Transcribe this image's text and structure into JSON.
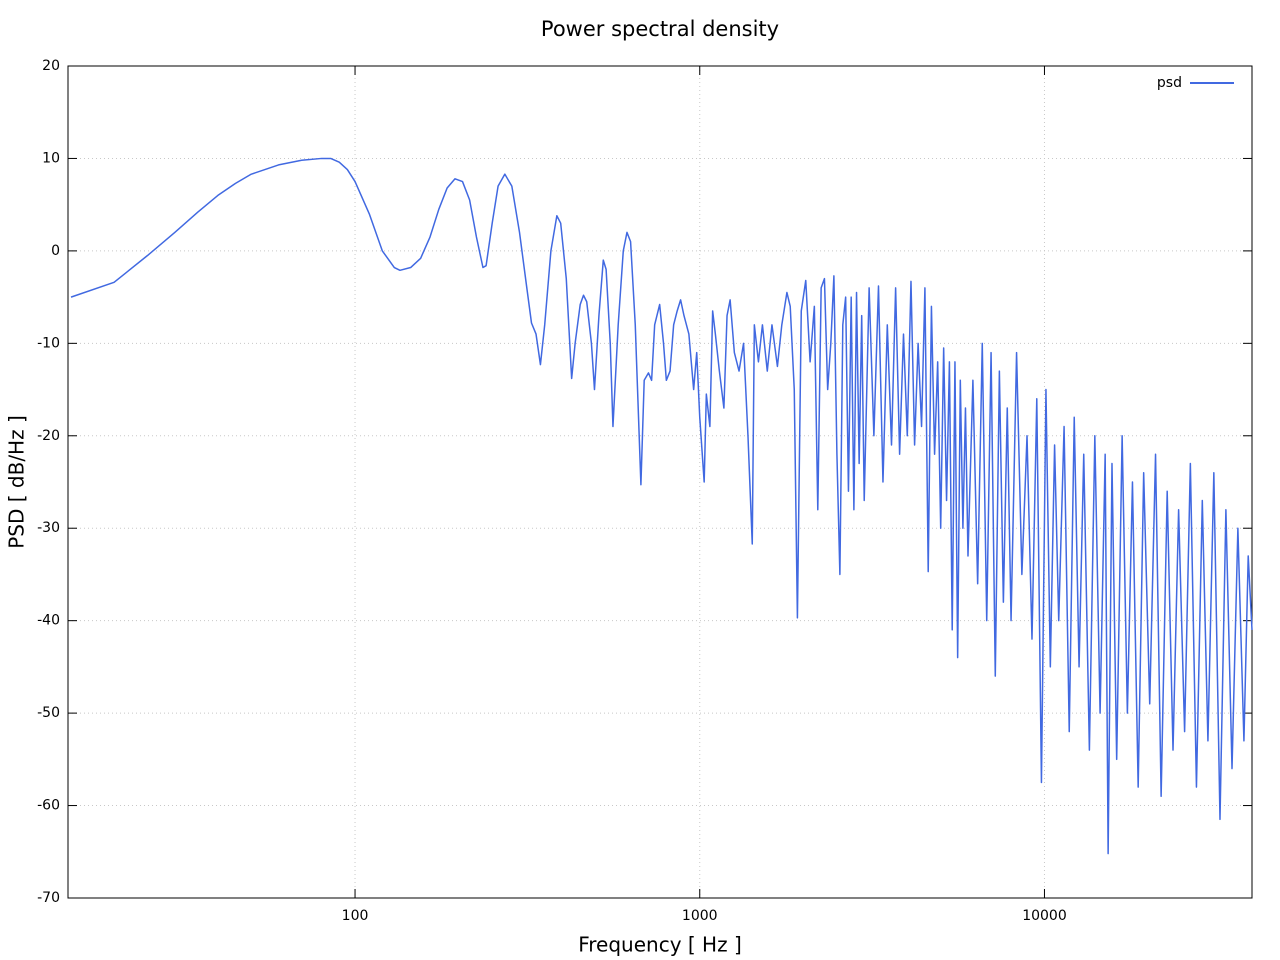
{
  "chart_data": {
    "type": "line",
    "title": "Power spectral density",
    "x_label": "Frequency [ Hz ]",
    "y_label": "PSD [ dB/Hz ]",
    "log_x": true,
    "grid": true,
    "legend": "top-right",
    "xlim": [
      14.7,
      40000
    ],
    "xticks": [
      100,
      1000,
      10000
    ],
    "ylim": [
      -70,
      20
    ],
    "yticks": [
      -70,
      -60,
      -50,
      -40,
      -30,
      -20,
      -10,
      0,
      10,
      20
    ],
    "x": [
      15,
      20,
      25,
      30,
      35,
      40,
      45,
      50,
      60,
      70,
      80,
      85,
      90,
      95,
      100,
      110,
      120,
      130,
      135,
      145,
      155,
      165,
      175,
      185,
      195,
      205,
      215,
      225,
      235,
      240,
      250,
      260,
      272,
      285,
      300,
      315,
      325,
      335,
      345,
      355,
      370,
      385,
      395,
      410,
      425,
      435,
      450,
      460,
      470,
      485,
      495,
      510,
      525,
      535,
      550,
      560,
      580,
      600,
      615,
      630,
      650,
      675,
      690,
      710,
      725,
      740,
      765,
      785,
      800,
      820,
      840,
      860,
      880,
      900,
      930,
      960,
      980,
      1000,
      1030,
      1045,
      1070,
      1090,
      1110,
      1140,
      1175,
      1200,
      1225,
      1260,
      1300,
      1340,
      1380,
      1420,
      1440,
      1480,
      1520,
      1570,
      1620,
      1680,
      1730,
      1790,
      1830,
      1880,
      1920,
      1970,
      2030,
      2090,
      2150,
      2200,
      2250,
      2300,
      2350,
      2400,
      2450,
      2500,
      2550,
      2600,
      2650,
      2700,
      2750,
      2800,
      2850,
      2900,
      2950,
      3000,
      3100,
      3200,
      3300,
      3400,
      3500,
      3600,
      3700,
      3800,
      3900,
      4000,
      4100,
      4200,
      4300,
      4400,
      4500,
      4600,
      4700,
      4800,
      4900,
      5000,
      5100,
      5200,
      5300,
      5400,
      5500,
      5600,
      5700,
      5800,
      5900,
      6000,
      6200,
      6400,
      6600,
      6800,
      7000,
      7200,
      7400,
      7600,
      7800,
      8000,
      8300,
      8600,
      8900,
      9200,
      9500,
      9800,
      10100,
      10400,
      10700,
      11000,
      11400,
      11800,
      12200,
      12600,
      13000,
      13500,
      14000,
      14500,
      15000,
      15300,
      15700,
      16200,
      16800,
      17400,
      18000,
      18700,
      19400,
      20200,
      21000,
      21800,
      22700,
      23600,
      24500,
      25500,
      26500,
      27600,
      28700,
      29800,
      31000,
      32300,
      33600,
      35000,
      36400,
      37900,
      39000,
      40000
    ],
    "series": [
      {
        "name": "psd",
        "color": "#4169e1",
        "values": [
          -5,
          -3.4,
          -0.5,
          2,
          4.2,
          6,
          7.3,
          8.3,
          9.3,
          9.8,
          10,
          10,
          9.6,
          8.8,
          7.5,
          4,
          0,
          -1.8,
          -2.1,
          -1.8,
          -0.8,
          1.5,
          4.5,
          6.8,
          7.8,
          7.5,
          5.5,
          1.5,
          -1.8,
          -1.6,
          3,
          7,
          8.3,
          7,
          2,
          -4,
          -7.8,
          -9,
          -12.3,
          -8,
          0,
          3.8,
          3,
          -3,
          -13.8,
          -10,
          -5.8,
          -4.8,
          -5.5,
          -10,
          -15,
          -7,
          -1,
          -2,
          -10,
          -19,
          -8,
          0,
          2,
          1,
          -8,
          -25.3,
          -14,
          -13.2,
          -14,
          -8,
          -5.8,
          -10,
          -14,
          -13,
          -8,
          -6.5,
          -5.3,
          -7,
          -9,
          -15,
          -11,
          -18,
          -25,
          -15.5,
          -19,
          -6.5,
          -9,
          -13,
          -17,
          -7,
          -5.3,
          -11,
          -13,
          -10,
          -20,
          -31.7,
          -8,
          -12,
          -8,
          -13,
          -8,
          -12.5,
          -8,
          -4.5,
          -6,
          -15,
          -39.7,
          -6.5,
          -3.2,
          -12,
          -6,
          -28,
          -4,
          -3,
          -15,
          -10,
          -2.7,
          -22,
          -35,
          -8,
          -5,
          -26,
          -5,
          -28,
          -4.5,
          -23,
          -7,
          -27,
          -4,
          -20,
          -3.8,
          -25,
          -8,
          -21,
          -4,
          -22,
          -9,
          -20,
          -3.3,
          -21,
          -10,
          -19,
          -4,
          -34.7,
          -6,
          -22,
          -12,
          -30,
          -10.5,
          -27,
          -12,
          -41,
          -12,
          -44,
          -14,
          -30,
          -17,
          -33,
          -14,
          -36,
          -10,
          -40,
          -11,
          -46,
          -13,
          -38,
          -17,
          -40,
          -11,
          -35,
          -20,
          -42,
          -16,
          -57.5,
          -15,
          -45,
          -21,
          -40,
          -19,
          -52,
          -18,
          -45,
          -22,
          -54,
          -20,
          -50,
          -22,
          -65.2,
          -23,
          -55,
          -20,
          -50,
          -25,
          -58,
          -24,
          -49,
          -22,
          -59,
          -26,
          -54,
          -28,
          -52,
          -23,
          -58,
          -27,
          -53,
          -24,
          -61.5,
          -28,
          -56,
          -30,
          -53,
          -33,
          -41
        ]
      }
    ]
  }
}
